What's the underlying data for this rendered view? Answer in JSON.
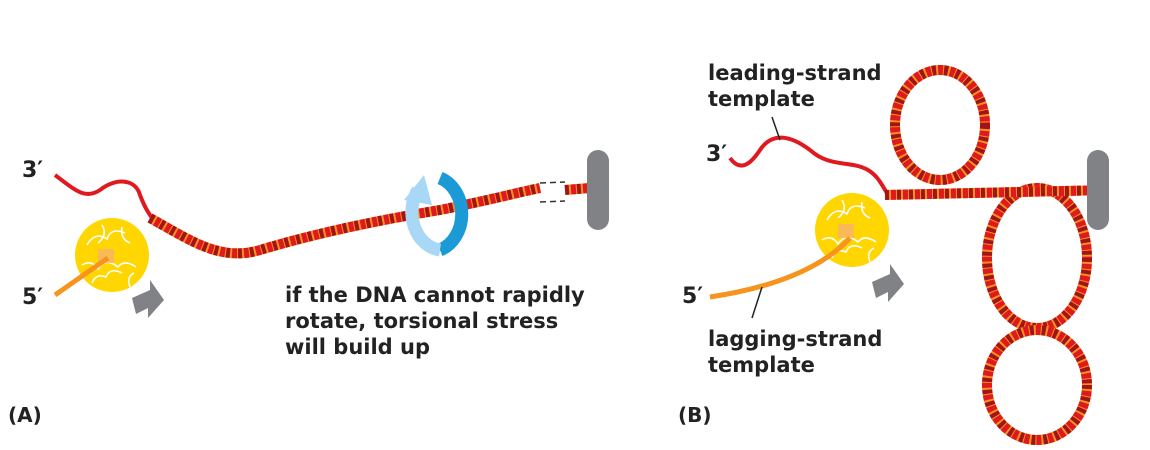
{
  "panel_a": {
    "label": "(A)",
    "three_prime": "3′",
    "five_prime": "5′",
    "caption_lines": [
      "if the DNA cannot rapidly",
      "rotate, torsional stress",
      "will build up"
    ]
  },
  "panel_b": {
    "label": "(B)",
    "three_prime": "3′",
    "five_prime": "5′",
    "leading_label": [
      "leading-strand",
      "template"
    ],
    "lagging_label": [
      "lagging-strand",
      "template"
    ]
  },
  "colors": {
    "red_strand": "#e0191f",
    "orange_strand": "#f7941d",
    "dark_red": "#a3141a",
    "helicase": "#ffd600",
    "anchor": "#808285",
    "rotation_arrow": "#1c9ad6"
  }
}
